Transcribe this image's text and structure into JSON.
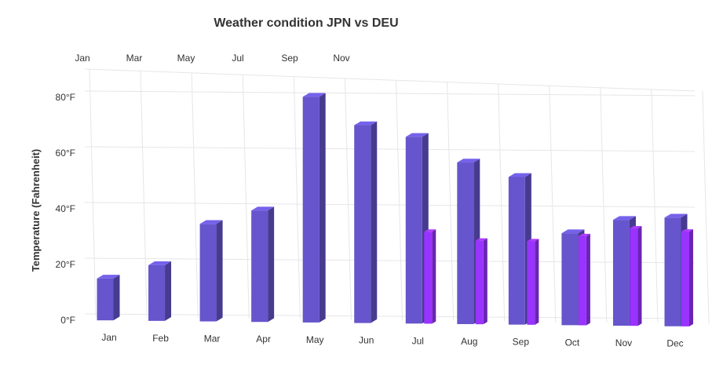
{
  "chart_data": {
    "type": "bar",
    "title": "Weather condition JPN vs DEU",
    "xlabel": "",
    "ylabel": "Temperature (Fahrenheit)",
    "ylim": [
      0,
      90
    ],
    "y_ticks": [
      "0°F",
      "20°F",
      "40°F",
      "60°F",
      "80°F"
    ],
    "y_tick_values": [
      0,
      20,
      40,
      60,
      80
    ],
    "categories": [
      "Jan",
      "Feb",
      "Mar",
      "Apr",
      "May",
      "Jun",
      "Jul",
      "Aug",
      "Sep",
      "Oct",
      "Nov",
      "Dec"
    ],
    "top_axis_labels": [
      "Jan",
      "Mar",
      "May",
      "Jul",
      "Sep",
      "Nov"
    ],
    "grid": true,
    "legend": "none",
    "style": "3d-column",
    "series": [
      {
        "values": [
          15,
          20,
          35,
          40,
          81,
          71,
          67,
          58,
          53,
          33,
          38,
          39
        ],
        "color": "#6655cc"
      },
      {
        "values": [
          null,
          null,
          null,
          null,
          null,
          null,
          33,
          30,
          30,
          32,
          35,
          34
        ],
        "color": "#9933ff"
      }
    ]
  }
}
